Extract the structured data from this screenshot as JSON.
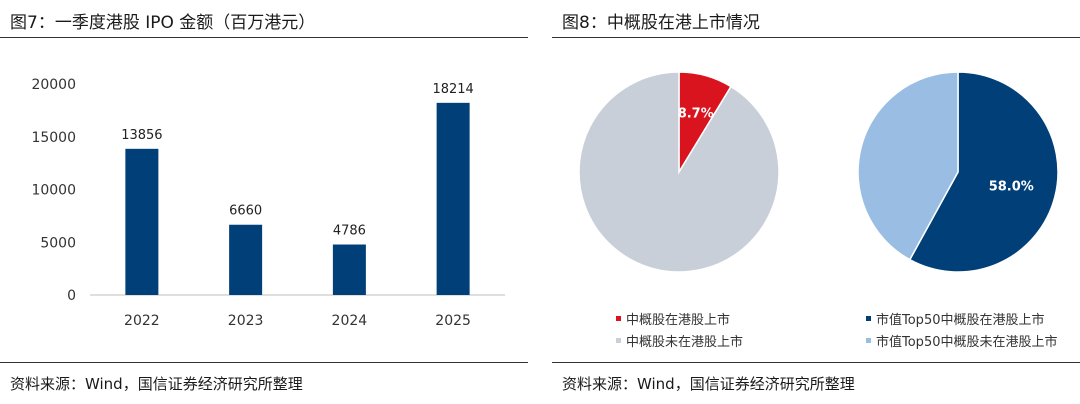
{
  "left": {
    "title": "图7：一季度港股 IPO 金额（百万港元）",
    "source": "资料来源：Wind，国信证券经济研究所整理"
  },
  "right": {
    "title": "图8：中概股在港上市情况",
    "source": "资料来源：Wind，国信证券经济研究所整理"
  },
  "colors": {
    "bar": "#003f78",
    "pie_red": "#d9141e",
    "pie_gray": "#c8cfd9",
    "pie_navy": "#003f78",
    "pie_lightblue": "#99bde3"
  },
  "chart_data": [
    {
      "type": "bar",
      "title": "图7：一季度港股 IPO 金额（百万港元）",
      "categories": [
        "2022",
        "2023",
        "2024",
        "2025"
      ],
      "values": [
        13856,
        6660,
        4786,
        18214
      ],
      "data_labels": [
        "13856",
        "6660",
        "4786",
        "18214"
      ],
      "ylim": [
        0,
        20000
      ],
      "yticks": [
        0,
        5000,
        10000,
        15000,
        20000
      ],
      "ytick_labels": [
        "0",
        "5000",
        "10000",
        "15000",
        "20000"
      ],
      "grid": false,
      "legend": "none"
    },
    {
      "type": "pie",
      "title": "图8：中概股在港上市情况",
      "slices": [
        {
          "label": "中概股在港股上市",
          "value": 8.7,
          "color": "#d9141e",
          "display": "8.7%"
        },
        {
          "label": "中概股未在港股上市",
          "value": 91.3,
          "color": "#c8cfd9",
          "display": ""
        }
      ],
      "legend": "bottom"
    },
    {
      "type": "pie",
      "slices": [
        {
          "label": "市值Top50中概股在港股上市",
          "value": 58.0,
          "color": "#003f78",
          "display": "58.0%"
        },
        {
          "label": "市值Top50中概股未在港股上市",
          "value": 42.0,
          "color": "#99bde3",
          "display": ""
        }
      ],
      "legend": "bottom"
    }
  ]
}
